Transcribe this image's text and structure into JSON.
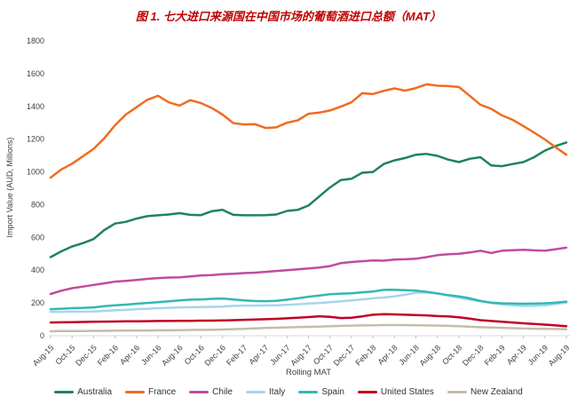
{
  "colors": {
    "title": "#C00000",
    "axis_text": "#404040",
    "axis_line": "#D9D9D9",
    "background": "#FFFFFF"
  },
  "chart_data": {
    "type": "line",
    "title": "图 1. 七大进口来源国在中国市场的葡萄酒进口总额（MAT）",
    "xlabel": "Rolling MAT",
    "ylabel": "Import Value (AUD, Millions)",
    "ylim": [
      0,
      1800
    ],
    "y_ticks": [
      0,
      200,
      400,
      600,
      800,
      1000,
      1200,
      1400,
      1600,
      1800
    ],
    "grid": false,
    "legend_position": "bottom",
    "x": [
      "Aug-15",
      "Sep-15",
      "Oct-15",
      "Nov-15",
      "Dec-15",
      "Jan-16",
      "Feb-16",
      "Mar-16",
      "Apr-16",
      "May-16",
      "Jun-16",
      "Jul-16",
      "Aug-16",
      "Sep-16",
      "Oct-16",
      "Nov-16",
      "Dec-16",
      "Jan-17",
      "Feb-17",
      "Mar-17",
      "Apr-17",
      "May-17",
      "Jun-17",
      "Jul-17",
      "Aug-17",
      "Sep-17",
      "Oct-17",
      "Nov-17",
      "Dec-17",
      "Jan-18",
      "Feb-18",
      "Mar-18",
      "Apr-18",
      "May-18",
      "Jun-18",
      "Jul-18",
      "Aug-18",
      "Sep-18",
      "Oct-18",
      "Nov-18",
      "Dec-18",
      "Jan-19",
      "Feb-19",
      "Mar-19",
      "Apr-19",
      "May-19",
      "Jun-19",
      "Jul-19",
      "Aug-19"
    ],
    "x_tick_every": 2,
    "series": [
      {
        "name": "Australia",
        "color": "#1F8459",
        "values": [
          480,
          515,
          545,
          565,
          590,
          645,
          685,
          695,
          715,
          730,
          735,
          740,
          748,
          738,
          736,
          760,
          768,
          738,
          735,
          735,
          736,
          740,
          762,
          768,
          795,
          850,
          905,
          950,
          958,
          995,
          1000,
          1048,
          1070,
          1085,
          1105,
          1110,
          1098,
          1075,
          1060,
          1080,
          1090,
          1040,
          1035,
          1048,
          1060,
          1090,
          1130,
          1158,
          1180
        ]
      },
      {
        "name": "France",
        "color": "#F06C22",
        "values": [
          965,
          1015,
          1050,
          1095,
          1140,
          1205,
          1285,
          1350,
          1395,
          1440,
          1465,
          1425,
          1405,
          1438,
          1420,
          1390,
          1350,
          1298,
          1290,
          1292,
          1268,
          1272,
          1300,
          1315,
          1355,
          1362,
          1375,
          1398,
          1425,
          1480,
          1475,
          1495,
          1510,
          1496,
          1512,
          1535,
          1526,
          1524,
          1518,
          1465,
          1410,
          1385,
          1345,
          1318,
          1280,
          1240,
          1198,
          1150,
          1105
        ]
      },
      {
        "name": "Chile",
        "color": "#BF4C9F",
        "values": [
          255,
          275,
          290,
          300,
          310,
          320,
          330,
          335,
          340,
          347,
          352,
          355,
          357,
          362,
          368,
          370,
          375,
          378,
          382,
          385,
          390,
          395,
          400,
          405,
          411,
          416,
          425,
          443,
          450,
          455,
          460,
          458,
          465,
          467,
          470,
          480,
          492,
          497,
          500,
          508,
          519,
          505,
          519,
          522,
          525,
          521,
          519,
          528,
          538
        ]
      },
      {
        "name": "Italy",
        "color": "#A5D5EE",
        "values": [
          146,
          146,
          147,
          147,
          148,
          152,
          155,
          158,
          162,
          165,
          168,
          170,
          173,
          174,
          175,
          176,
          178,
          182,
          184,
          184,
          185,
          186,
          188,
          192,
          196,
          200,
          205,
          210,
          216,
          222,
          228,
          233,
          240,
          250,
          262,
          265,
          258,
          245,
          232,
          220,
          211,
          200,
          192,
          186,
          182,
          182,
          186,
          194,
          202
        ]
      },
      {
        "name": "Spain",
        "color": "#33B8B3",
        "values": [
          162,
          165,
          168,
          170,
          173,
          180,
          186,
          190,
          195,
          200,
          205,
          210,
          216,
          220,
          222,
          225,
          227,
          222,
          215,
          212,
          211,
          213,
          220,
          228,
          238,
          245,
          254,
          257,
          259,
          265,
          270,
          280,
          281,
          278,
          275,
          268,
          258,
          248,
          240,
          228,
          212,
          202,
          198,
          196,
          195,
          196,
          198,
          202,
          208
        ]
      },
      {
        "name": "United States",
        "color": "#C00025",
        "values": [
          81,
          82,
          83,
          84,
          85,
          86,
          87,
          88,
          88,
          89,
          90,
          90,
          91,
          91,
          92,
          92,
          93,
          95,
          97,
          99,
          101,
          103,
          106,
          110,
          114,
          119,
          115,
          108,
          110,
          118,
          128,
          132,
          130,
          128,
          126,
          124,
          120,
          118,
          112,
          104,
          95,
          90,
          85,
          81,
          76,
          72,
          68,
          63,
          58
        ]
      },
      {
        "name": "New Zealand",
        "color": "#C6BCA9",
        "values": [
          27,
          28,
          28,
          29,
          30,
          30,
          31,
          31,
          32,
          32,
          33,
          33,
          34,
          35,
          36,
          37,
          38,
          40,
          42,
          45,
          47,
          49,
          51,
          53,
          54,
          56,
          58,
          60,
          62,
          63,
          64,
          65,
          65,
          65,
          64,
          63,
          62,
          60,
          58,
          55,
          52,
          50,
          48,
          46,
          44,
          43,
          42,
          41,
          40
        ]
      }
    ]
  }
}
